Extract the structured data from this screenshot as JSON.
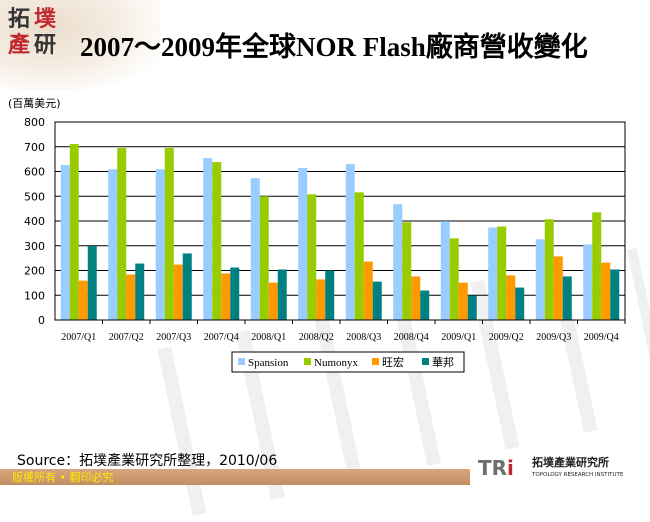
{
  "header": {
    "title": "2007～2009年全球NOR Flash廠商營收變化",
    "logo_text": "拓墣產研"
  },
  "chart_data": {
    "type": "bar",
    "title": "2007～2009年全球NOR Flash廠商營收變化",
    "ylabel": "(百萬美元)",
    "xlabel": "",
    "ylim": [
      0,
      800
    ],
    "yticks": [
      0,
      100,
      200,
      300,
      400,
      500,
      600,
      700,
      800
    ],
    "grid": true,
    "legend_placement": "bottom",
    "categories": [
      "2007/Q1",
      "2007/Q2",
      "2007/Q3",
      "2007/Q4",
      "2008/Q1",
      "2008/Q2",
      "2008/Q3",
      "2008/Q4",
      "2009/Q1",
      "2009/Q2",
      "2009/Q3",
      "2009/Q4"
    ],
    "series": [
      {
        "name": "Spansion",
        "color": "#99ccff",
        "values": [
          626,
          609,
          609,
          654,
          573,
          614,
          630,
          468,
          399,
          374,
          326,
          305
        ]
      },
      {
        "name": "Numonyx",
        "color": "#99cc00",
        "values": [
          711,
          695,
          695,
          638,
          500,
          508,
          516,
          395,
          330,
          378,
          407,
          435
        ]
      },
      {
        "name": "旺宏",
        "color": "#ff9900",
        "values": [
          159,
          184,
          224,
          188,
          151,
          164,
          236,
          176,
          151,
          180,
          257,
          232
        ]
      },
      {
        "name": "華邦",
        "color": "#008080",
        "values": [
          299,
          228,
          269,
          212,
          204,
          200,
          155,
          119,
          99,
          131,
          176,
          204
        ]
      }
    ]
  },
  "footer": {
    "source": "Source：拓墣產業研究所整理，2010/06",
    "copyright": "版權所有 • 翻印必究",
    "brand_cn": "拓墣產業研究所",
    "brand_en": "TOPOLOGY RESEARCH INSTITUTE",
    "brand_logo": "TRi"
  }
}
